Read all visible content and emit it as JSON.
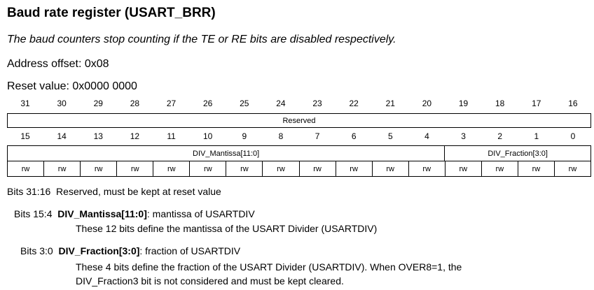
{
  "header": {
    "title": "Baud rate register (USART_BRR)",
    "note": "The baud counters stop counting if the TE or RE bits are disabled respectively.",
    "address_offset": "Address offset: 0x08",
    "reset_value": "Reset value: 0x0000 0000"
  },
  "register": {
    "upper_bits": [
      "31",
      "30",
      "29",
      "28",
      "27",
      "26",
      "25",
      "24",
      "23",
      "22",
      "21",
      "20",
      "19",
      "18",
      "17",
      "16"
    ],
    "upper_field": "Reserved",
    "lower_bits": [
      "15",
      "14",
      "13",
      "12",
      "11",
      "10",
      "9",
      "8",
      "7",
      "6",
      "5",
      "4",
      "3",
      "2",
      "1",
      "0"
    ],
    "lower_fields": [
      "DIV_Mantissa[11:0]",
      "DIV_Fraction[3:0]"
    ],
    "access": [
      "rw",
      "rw",
      "rw",
      "rw",
      "rw",
      "rw",
      "rw",
      "rw",
      "rw",
      "rw",
      "rw",
      "rw",
      "rw",
      "rw",
      "rw",
      "rw"
    ]
  },
  "descriptions": {
    "reserved": {
      "bits": "Bits 31:16",
      "text": "Reserved, must be kept at reset value"
    },
    "mantissa": {
      "bits": "Bits 15:4",
      "name": "DIV_Mantissa[11:0]",
      "summary": ": mantissa of USARTDIV",
      "detail": "These 12 bits define the mantissa of the USART Divider (USARTDIV)"
    },
    "fraction": {
      "bits": "Bits 3:0",
      "name": "DIV_Fraction[3:0]",
      "summary": ": fraction of USARTDIV",
      "detail_1": "These 4 bits define the fraction of the USART Divider (USARTDIV). When OVER8=1, the",
      "detail_2": "DIV_Fraction3 bit is not considered and must be kept cleared."
    }
  }
}
